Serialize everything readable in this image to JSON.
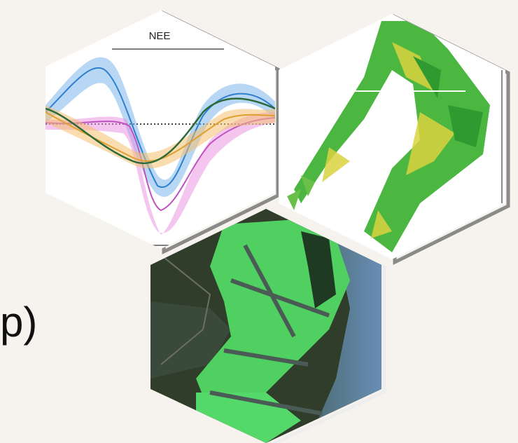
{
  "panel_title": "NEE",
  "caption": "p)"
}
